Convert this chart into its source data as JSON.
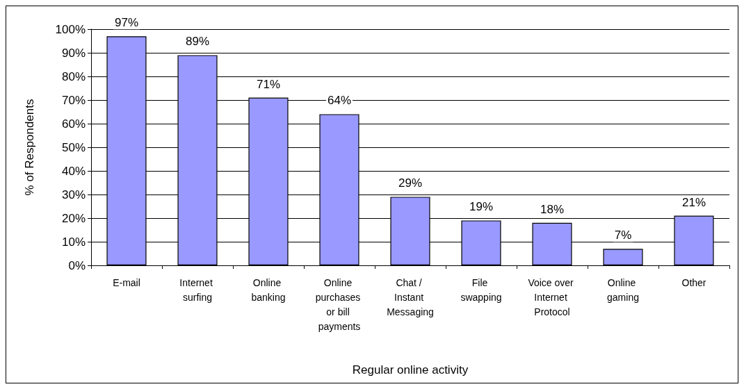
{
  "chart_data": {
    "type": "bar",
    "xlabel": "Regular online activity",
    "ylabel": "% of Respondents",
    "categories": [
      "E-mail",
      "Internet surfing",
      "Online banking",
      "Online purchases or bill payments",
      "Chat / Instant Messaging",
      "File swapping",
      "Voice over Internet Protocol",
      "Online gaming",
      "Other"
    ],
    "values": [
      97,
      89,
      71,
      64,
      29,
      19,
      18,
      7,
      21
    ],
    "value_labels": [
      "97%",
      "89%",
      "71%",
      "64%",
      "29%",
      "19%",
      "18%",
      "7%",
      "21%"
    ],
    "color": "#9999ff",
    "ylim": [
      0,
      100
    ],
    "yticks": [
      {
        "value": 0,
        "label": "0%"
      },
      {
        "value": 10,
        "label": "10%"
      },
      {
        "value": 20,
        "label": "20%"
      },
      {
        "value": 30,
        "label": "30%"
      },
      {
        "value": 40,
        "label": "40%"
      },
      {
        "value": 50,
        "label": "50%"
      },
      {
        "value": 60,
        "label": "60%"
      },
      {
        "value": 70,
        "label": "70%"
      },
      {
        "value": 80,
        "label": "80%"
      },
      {
        "value": 90,
        "label": "90%"
      },
      {
        "value": 100,
        "label": "100%"
      }
    ],
    "grid": "y"
  }
}
